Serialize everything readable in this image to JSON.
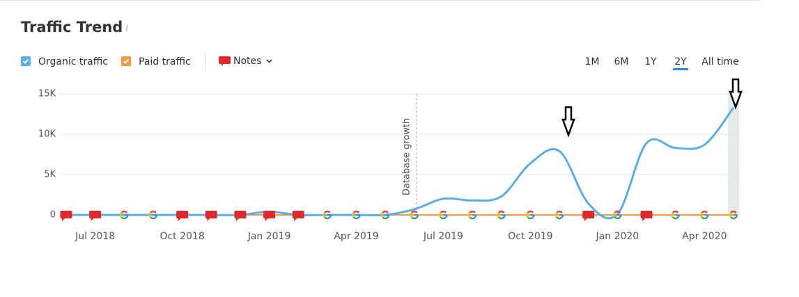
{
  "chart_data": {
    "type": "line",
    "title": "Traffic Trend",
    "notes_label": "Notes",
    "periods": [
      "1M",
      "6M",
      "1Y",
      "2Y",
      "All time"
    ],
    "active_period": "2Y",
    "annotation": "Database growth",
    "categories": [
      null,
      "Jul 2018",
      null,
      null,
      "Oct 2018",
      null,
      null,
      "Jan 2019",
      null,
      null,
      "Apr 2019",
      null,
      null,
      "Jul 2019",
      null,
      null,
      "Oct 2019",
      null,
      null,
      "Jan 2020",
      null,
      null,
      "Apr 2020",
      null
    ],
    "series": [
      {
        "name": "Organic traffic",
        "color": "#5aaee8",
        "values": [
          0,
          0,
          0,
          0,
          0,
          0,
          0,
          400,
          0,
          0,
          0,
          0,
          700,
          2000,
          1800,
          2300,
          6400,
          7900,
          1400,
          100,
          8900,
          8300,
          8700,
          13300
        ]
      },
      {
        "name": "Paid traffic",
        "color": "#f6993b",
        "values": [
          0,
          0,
          0,
          0,
          0,
          0,
          0,
          0,
          0,
          0,
          0,
          0,
          0,
          0,
          0,
          0,
          0,
          0,
          0,
          0,
          0,
          0,
          0,
          0
        ]
      }
    ],
    "ylim": [
      0,
      15000
    ],
    "yticks": [
      0,
      {
        "value": 5000,
        "label": "5K"
      },
      {
        "value": 10000,
        "label": "10K"
      },
      {
        "value": 15000,
        "label": "15K"
      }
    ],
    "grid": true
  }
}
